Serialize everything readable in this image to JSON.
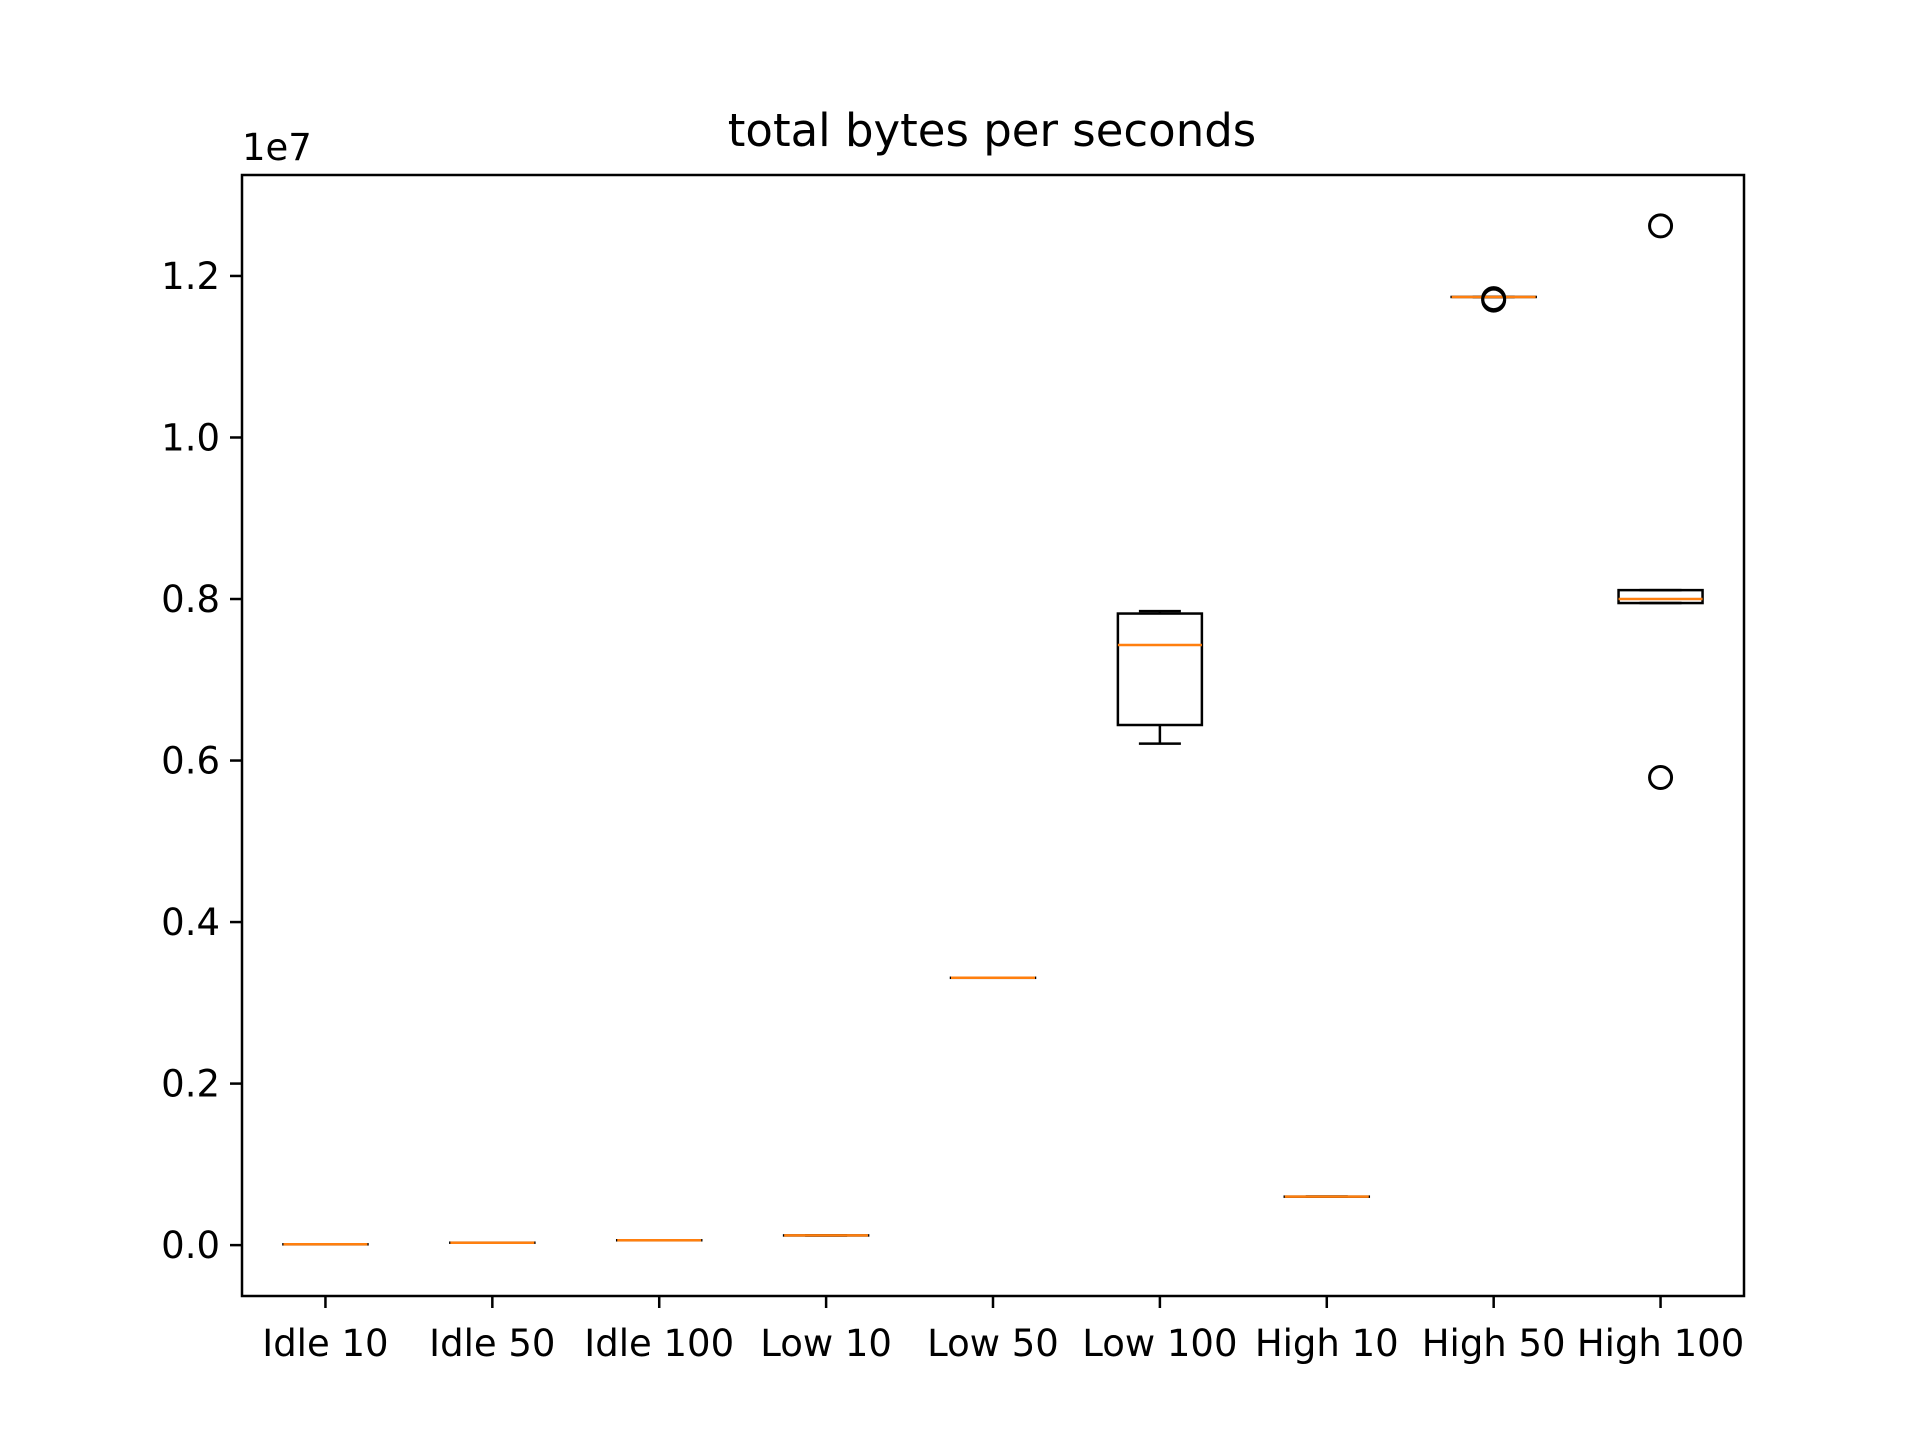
{
  "chart_data": {
    "type": "box",
    "title": "total bytes per seconds",
    "xlabel": "",
    "ylabel": "",
    "y_offset_label": "1e7",
    "y_scale": 10000000,
    "ylim": [
      -0.063,
      1.325
    ],
    "yticks": [
      0.0,
      0.2,
      0.4,
      0.6,
      0.8,
      1.0,
      1.2
    ],
    "ytick_labels": [
      "0.0",
      "0.2",
      "0.4",
      "0.6",
      "0.8",
      "1.0",
      "1.2"
    ],
    "categories": [
      "Idle 10",
      "Idle 50",
      "Idle 100",
      "Low 10",
      "Low 50",
      "Low 100",
      "High 10",
      "High 50",
      "High 100"
    ],
    "boxes": [
      {
        "label": "Idle 10",
        "whislo": 0.001,
        "q1": 0.001,
        "med": 0.001,
        "q3": 0.001,
        "whishi": 0.001,
        "fliers": []
      },
      {
        "label": "Idle 50",
        "whislo": 0.003,
        "q1": 0.003,
        "med": 0.003,
        "q3": 0.003,
        "whishi": 0.003,
        "fliers": []
      },
      {
        "label": "Idle 100",
        "whislo": 0.006,
        "q1": 0.006,
        "med": 0.006,
        "q3": 0.006,
        "whishi": 0.006,
        "fliers": []
      },
      {
        "label": "Low 10",
        "whislo": 0.012,
        "q1": 0.012,
        "med": 0.012,
        "q3": 0.012,
        "whishi": 0.012,
        "fliers": []
      },
      {
        "label": "Low 50",
        "whislo": 0.331,
        "q1": 0.331,
        "med": 0.331,
        "q3": 0.331,
        "whishi": 0.331,
        "fliers": []
      },
      {
        "label": "Low 100",
        "whislo": 0.621,
        "q1": 0.644,
        "med": 0.743,
        "q3": 0.782,
        "whishi": 0.785,
        "fliers": []
      },
      {
        "label": "High 10",
        "whislo": 0.06,
        "q1": 0.06,
        "med": 0.06,
        "q3": 0.06,
        "whishi": 0.06,
        "fliers": []
      },
      {
        "label": "High 50",
        "whislo": 1.174,
        "q1": 1.174,
        "med": 1.174,
        "q3": 1.174,
        "whishi": 1.174,
        "fliers": [
          1.172,
          1.17
        ]
      },
      {
        "label": "High 100",
        "whislo": 0.795,
        "q1": 0.795,
        "med": 0.8,
        "q3": 0.811,
        "whishi": 0.811,
        "fliers": [
          1.262,
          0.579
        ]
      }
    ],
    "grid": false,
    "colors": {
      "box": "#000000",
      "median": "#ff7f0e",
      "flier": "#000000",
      "background": "#ffffff"
    }
  }
}
